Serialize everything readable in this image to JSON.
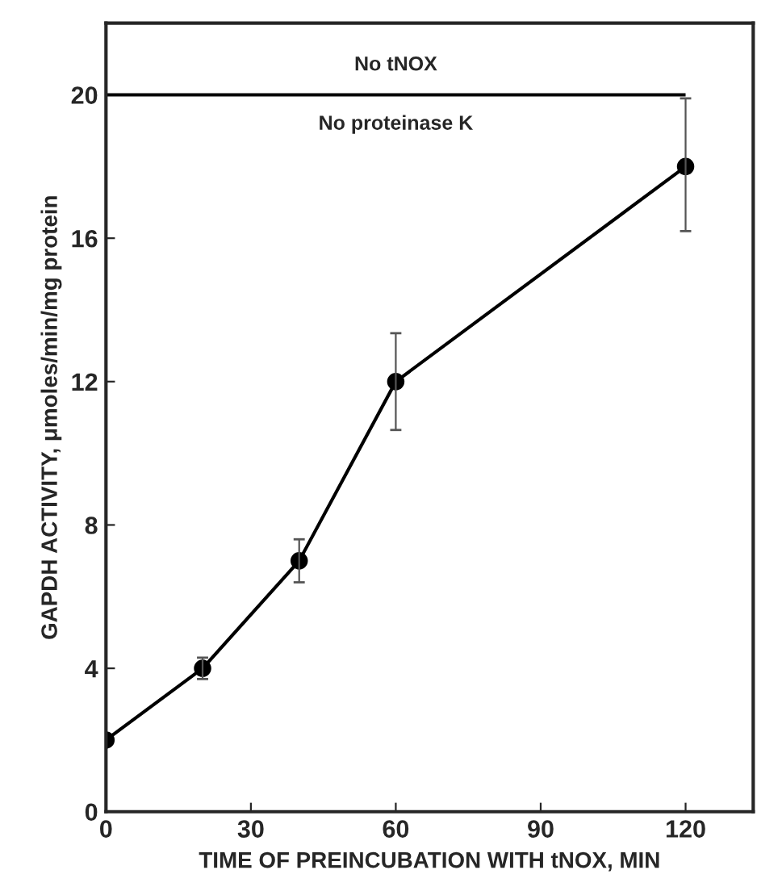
{
  "chart_data": {
    "type": "line",
    "xlabel": "TIME OF PREINCUBATION WITH tNOX, MIN",
    "ylabel": "GAPDH ACTIVITY, μmoles/min/mg protein",
    "x": [
      0,
      20,
      40,
      60,
      120
    ],
    "series": [
      {
        "color": "#000000",
        "values": [
          2,
          4,
          7,
          12,
          18
        ],
        "errors": [
          null,
          0.3,
          0.6,
          [
            10.65,
            13.35
          ],
          [
            16.2,
            19.9
          ]
        ]
      }
    ],
    "xlim": [
      0,
      134
    ],
    "xticks": [
      0,
      30,
      60,
      90,
      120
    ],
    "ylim": [
      0,
      22
    ],
    "yticks": [
      0,
      4,
      8,
      12,
      16,
      20
    ],
    "ref_lines": [
      {
        "axis": "y",
        "value": 20,
        "color": "#000000"
      }
    ],
    "annotations": [
      "No tNOX",
      "No proteinase K"
    ],
    "marker": "circle",
    "line_style": "solid",
    "grid": false,
    "legend": false
  }
}
